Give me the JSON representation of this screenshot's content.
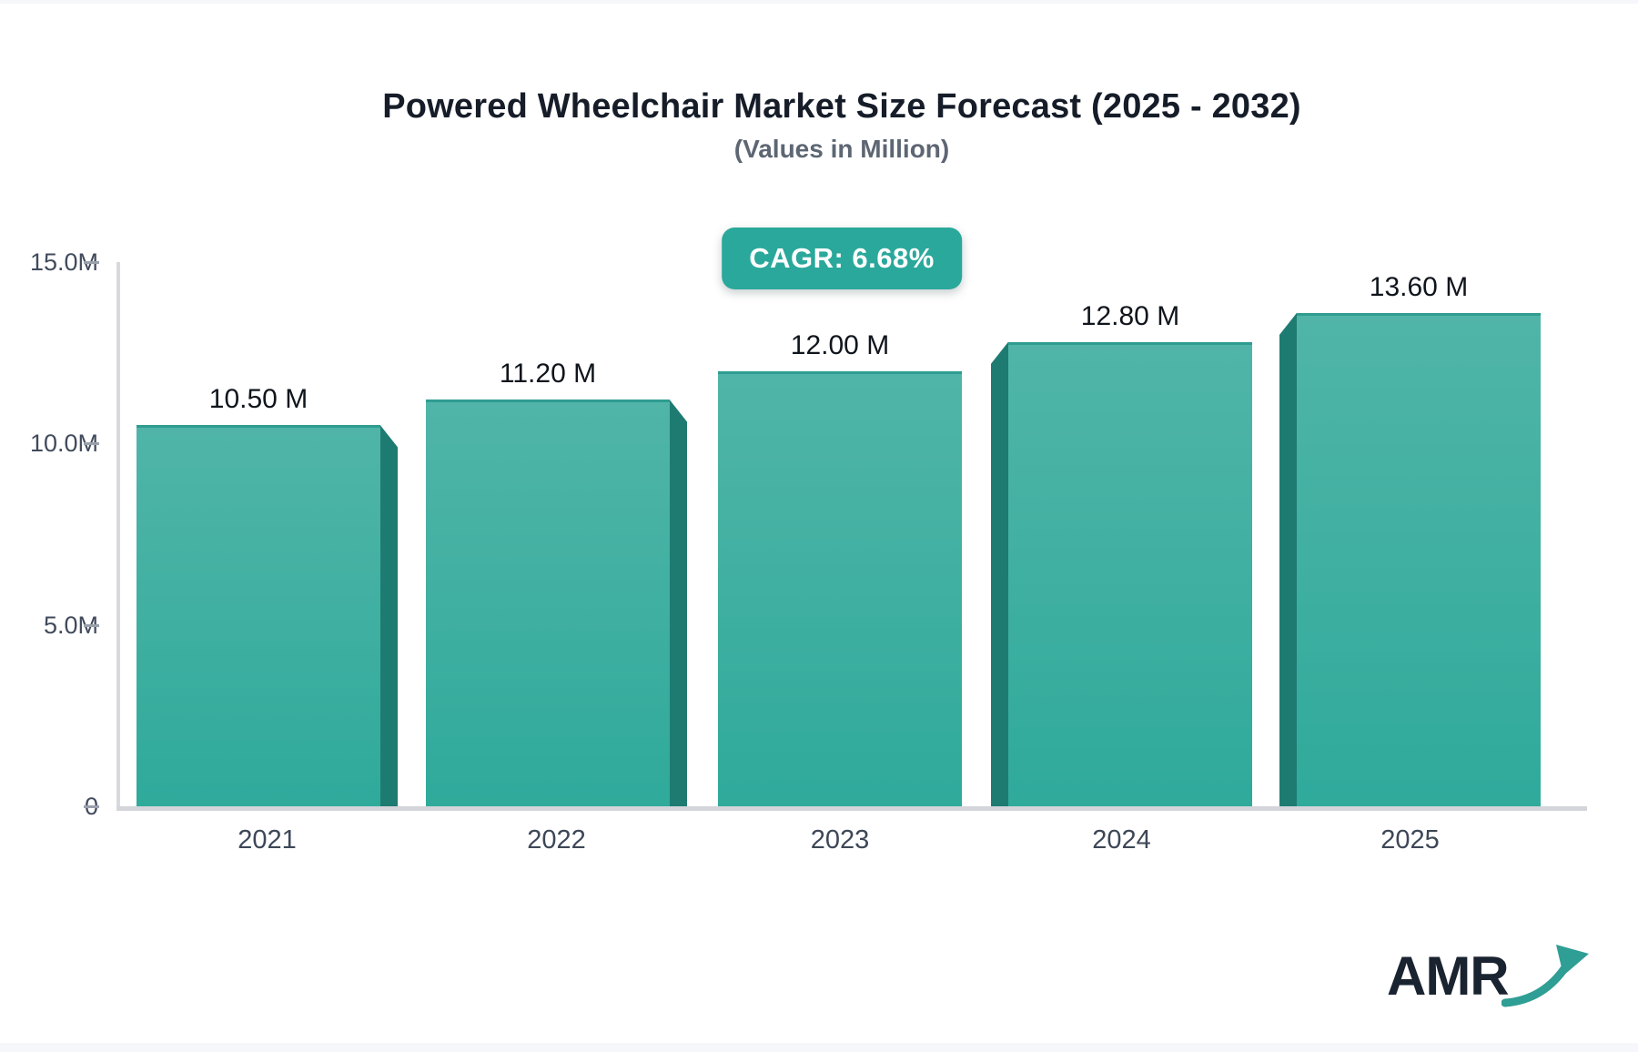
{
  "header": {
    "title": "Powered Wheelchair Market Size Forecast (2025 - 2032)",
    "subtitle": "(Values in Million)",
    "cagr_badge": "CAGR: 6.68%"
  },
  "chart_data": {
    "type": "bar",
    "title": "Powered Wheelchair Market Size Forecast (2025 - 2032)",
    "subtitle": "(Values in Million)",
    "unit": "Million",
    "cagr": "6.68%",
    "categories": [
      "2021",
      "2022",
      "2023",
      "2024",
      "2025"
    ],
    "values": [
      10.5,
      11.2,
      12.0,
      12.8,
      13.6
    ],
    "value_labels": [
      "10.50 M",
      "11.20 M",
      "12.00 M",
      "12.80 M",
      "13.60 M"
    ],
    "ylim": [
      0,
      15
    ],
    "yticks": [
      {
        "value": 15,
        "label": "15.0M"
      },
      {
        "value": 10,
        "label": "10.0M"
      },
      {
        "value": 5,
        "label": "5.0M"
      },
      {
        "value": 0,
        "label": "0"
      }
    ],
    "grid": false,
    "legend": "none",
    "bar_style": "3d-perspective-center"
  },
  "colors": {
    "bar_gradient_top": "#50b5a8",
    "bar_gradient_bottom": "#2faa9b",
    "bar_side_panel": "#1e7b72",
    "bar_top_edge": "#2f9c91",
    "badge_bg": "#2aa89b",
    "badge_text": "#ffffff",
    "axis_line": "#d7d9dd",
    "tick_text": "#414b5c",
    "title_text": "#161d29",
    "subtitle_text": "#5d6673",
    "logo_text": "#1a2330",
    "logo_arrow": "#2f9e94"
  },
  "logo": {
    "text": "AMR"
  }
}
